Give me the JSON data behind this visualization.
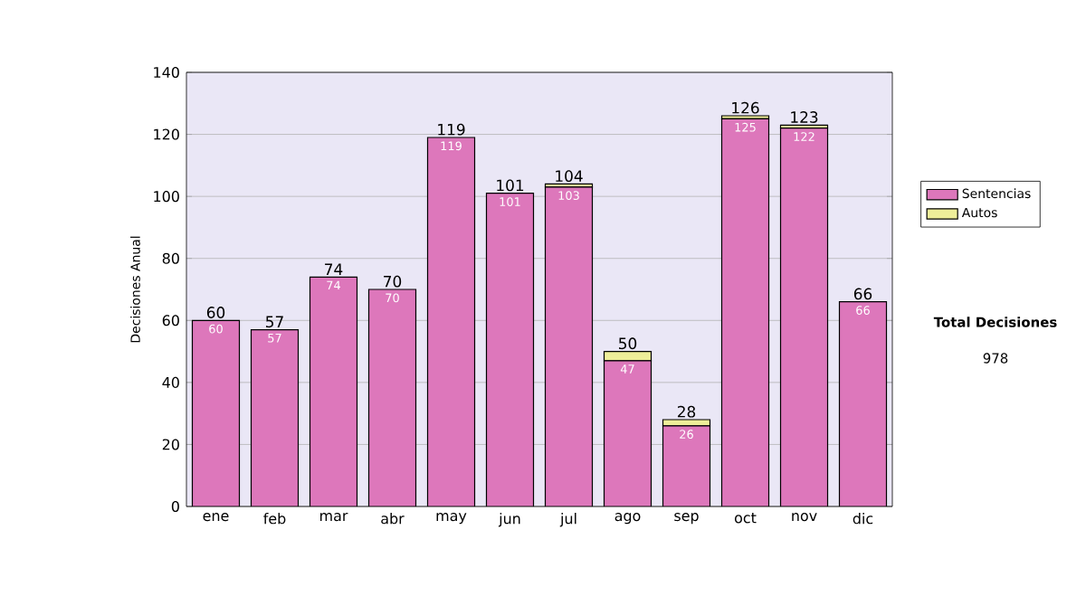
{
  "chart_data": {
    "type": "bar",
    "stacked": true,
    "ylabel": "Decisiones Anual",
    "categories": [
      "ene",
      "feb",
      "mar",
      "abr",
      "may",
      "jun",
      "jul",
      "ago",
      "sep",
      "oct",
      "nov",
      "dic"
    ],
    "series": [
      {
        "name": "Sentencias",
        "color": "#dd77bb",
        "values": [
          60,
          57,
          74,
          70,
          119,
          101,
          103,
          47,
          26,
          125,
          122,
          66
        ],
        "value_labels": [
          "60",
          "57",
          "74",
          "70",
          "119",
          "101",
          "103",
          "47",
          "26",
          "125",
          "122",
          "66"
        ]
      },
      {
        "name": "Autos",
        "color": "#eeee99",
        "values": [
          0,
          0,
          0,
          0,
          0,
          0,
          1,
          3,
          2,
          1,
          1,
          0
        ]
      }
    ],
    "totals": [
      "60",
      "57",
      "74",
      "70",
      "119",
      "101",
      "104",
      "50",
      "28",
      "126",
      "123",
      "66"
    ],
    "ylim": [
      0,
      140
    ],
    "yticks": [
      0,
      20,
      40,
      60,
      80,
      100,
      120,
      140
    ],
    "grid": "y",
    "legend": "right",
    "annotations": [
      "Total Decisiones",
      "978"
    ]
  }
}
